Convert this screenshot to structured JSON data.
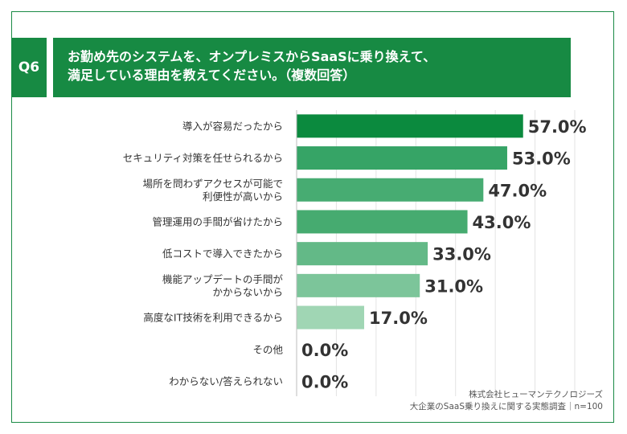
{
  "header": {
    "badge": "Q6",
    "title_line1": "お勤め先のシステムを、オンプレミスからSaaSに乗り換えて、",
    "title_line2": "満足している理由を教えてください。（複数回答）"
  },
  "chart_data": {
    "type": "bar",
    "orientation": "horizontal",
    "categories": [
      [
        "導入が容易だったから"
      ],
      [
        "セキュリティ対策を任せられるから"
      ],
      [
        "場所を問わずアクセスが可能で",
        "利便性が高いから"
      ],
      [
        "管理運用の手間が省けたから"
      ],
      [
        "低コストで導入できたから"
      ],
      [
        "機能アップデートの手間が",
        "かからないから"
      ],
      [
        "高度なIT技術を利用できるから"
      ],
      [
        "その他"
      ],
      [
        "わからない/答えられない"
      ]
    ],
    "values": [
      57.0,
      53.0,
      47.0,
      43.0,
      33.0,
      31.0,
      17.0,
      0.0,
      0.0
    ],
    "value_labels": [
      "57.0%",
      "53.0%",
      "47.0%",
      "43.0%",
      "33.0%",
      "31.0%",
      "17.0%",
      "0.0%",
      "0.0%"
    ],
    "bar_colors": [
      "#0b8a3e",
      "#36a466",
      "#47ac72",
      "#46ab70",
      "#63b987",
      "#7cc59a",
      "#a0d6b4",
      "#c8e7d3",
      "#c8e7d3"
    ],
    "xlim": [
      0,
      70
    ],
    "grid": true
  },
  "source": {
    "line1": "株式会社ヒューマンテクノロジーズ",
    "line2": "大企業のSaaS乗り換えに関する実態調査｜n=100"
  }
}
